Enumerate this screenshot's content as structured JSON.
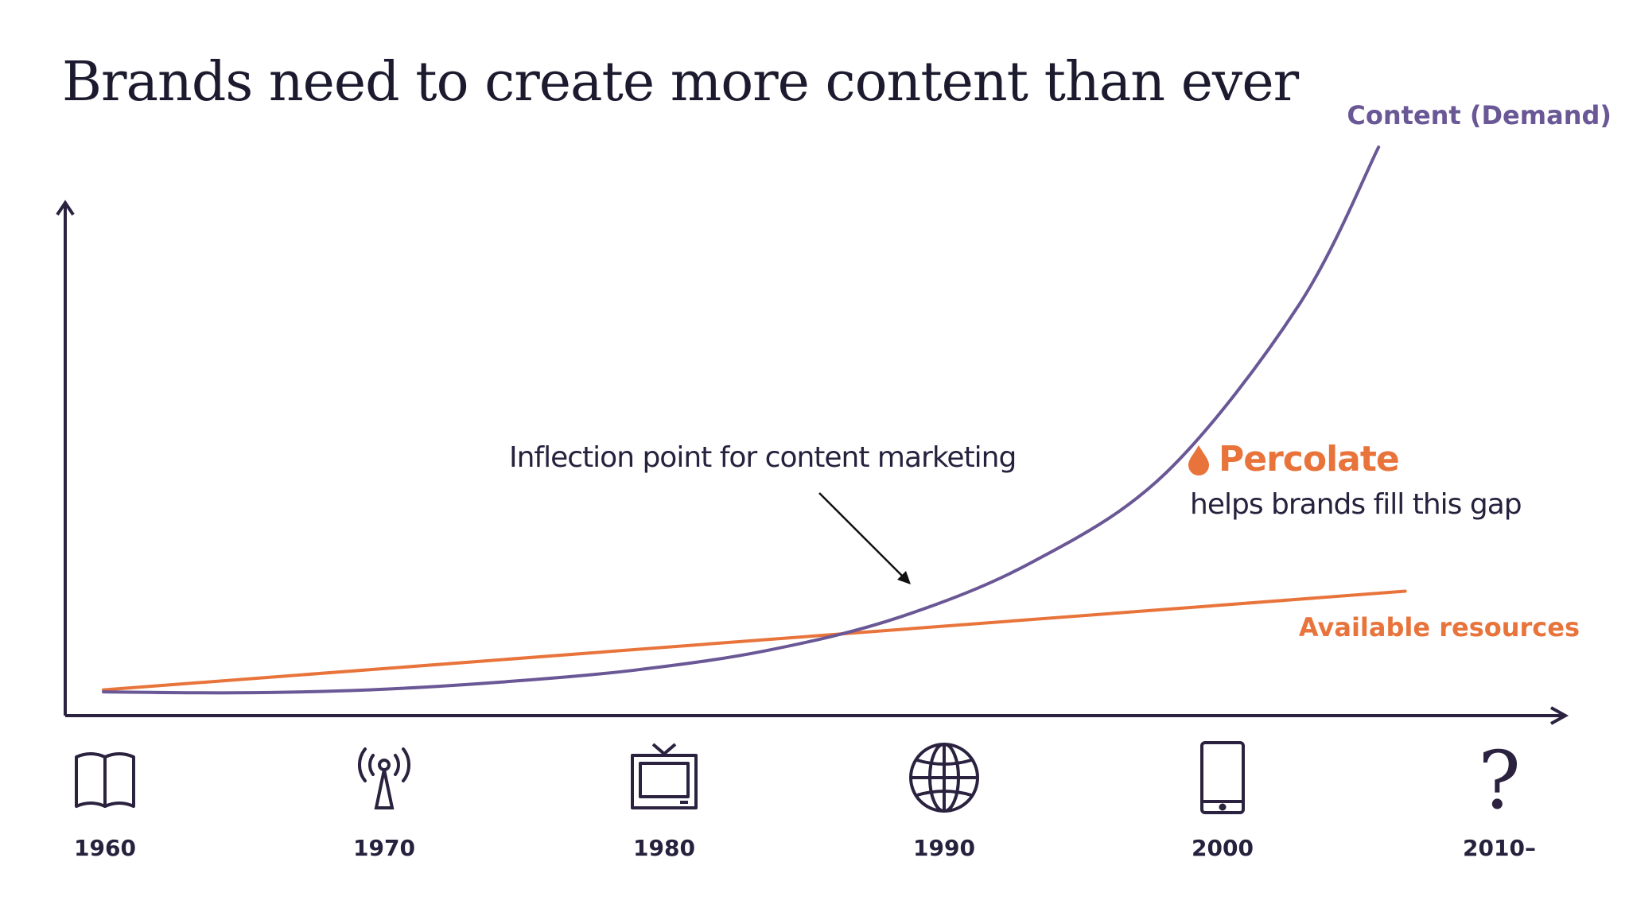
{
  "title": "Brands need to create more content than ever",
  "chart_data": {
    "type": "line",
    "x": [
      "1960",
      "1970",
      "1980",
      "1990",
      "2000",
      "2010–"
    ],
    "series": [
      {
        "name": "Content (Demand)",
        "color": "#6a5796",
        "x": [
          1960,
          1965,
          1970,
          1975,
          1980,
          1985,
          1990,
          1995,
          2000,
          2005,
          2008
        ],
        "values": [
          4,
          3.5,
          5,
          9,
          15,
          25,
          42,
          70,
          115,
          200,
          280
        ]
      },
      {
        "name": "Available resources",
        "color": "#e8743b",
        "x": [
          1960,
          2009
        ],
        "values": [
          5,
          55
        ]
      }
    ],
    "annotations": [
      {
        "text": "Inflection point for content marketing",
        "x": 1990,
        "y": 42
      }
    ],
    "x_icons": [
      "book-icon",
      "radio-tower-icon",
      "tv-icon",
      "globe-icon",
      "tablet-icon",
      "question-mark-icon"
    ],
    "axis_color": "#2b2240",
    "grid": false,
    "legend": "inline-labels"
  },
  "brand": {
    "name": "Percolate",
    "tagline": "helps brands fill this gap",
    "icon": "drop-icon",
    "color": "#e8743b"
  }
}
